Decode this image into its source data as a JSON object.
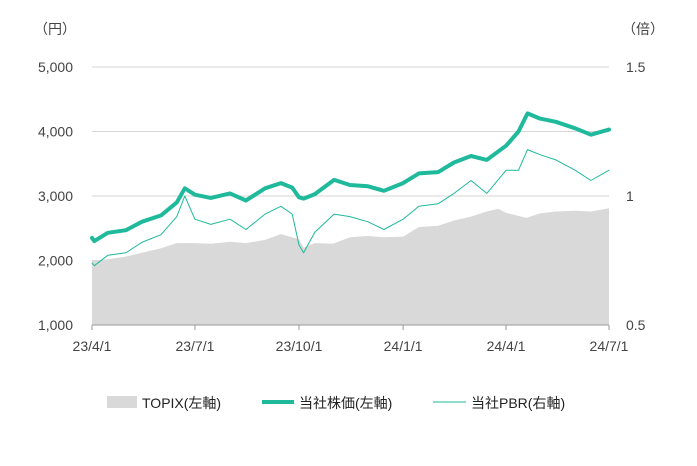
{
  "chart_data": {
    "type": "line",
    "title": "",
    "left_axis": {
      "unit_label": "（円）",
      "ylim": [
        1000,
        5000
      ],
      "ticks": [
        {
          "v": 1000,
          "label": "1,000"
        },
        {
          "v": 2000,
          "label": "2,000"
        },
        {
          "v": 3000,
          "label": "3,000"
        },
        {
          "v": 4000,
          "label": "4,000"
        },
        {
          "v": 5000,
          "label": "5,000"
        }
      ]
    },
    "right_axis": {
      "unit_label": "（倍）",
      "ylim": [
        0.5,
        1.5
      ],
      "ticks": [
        {
          "v": 0.5,
          "label": "0.5"
        },
        {
          "v": 1.0,
          "label": "1"
        },
        {
          "v": 1.5,
          "label": "1.5"
        }
      ]
    },
    "x_axis": {
      "min": "2023-04-01",
      "max": "2024-07-01",
      "ticks": [
        {
          "date": "2023-04-01",
          "label": "23/4/1"
        },
        {
          "date": "2023-07-01",
          "label": "23/7/1"
        },
        {
          "date": "2023-10-01",
          "label": "23/10/1"
        },
        {
          "date": "2024-01-01",
          "label": "24/1/1"
        },
        {
          "date": "2024-04-01",
          "label": "24/4/1"
        },
        {
          "date": "2024-07-01",
          "label": "24/7/1"
        }
      ]
    },
    "grid": "horizontal",
    "legend_position": "bottom",
    "series": [
      {
        "name": "TOPIX(左軸)",
        "kind": "area",
        "axis": "left",
        "color": "#d9d9d9",
        "points": [
          [
            "2023-04-01",
            1990
          ],
          [
            "2023-04-03",
            2000
          ],
          [
            "2023-04-15",
            2020
          ],
          [
            "2023-05-01",
            2060
          ],
          [
            "2023-05-15",
            2120
          ],
          [
            "2023-06-01",
            2190
          ],
          [
            "2023-06-15",
            2270
          ],
          [
            "2023-07-01",
            2270
          ],
          [
            "2023-07-15",
            2260
          ],
          [
            "2023-08-01",
            2290
          ],
          [
            "2023-08-15",
            2270
          ],
          [
            "2023-09-01",
            2320
          ],
          [
            "2023-09-15",
            2410
          ],
          [
            "2023-10-01",
            2330
          ],
          [
            "2023-10-05",
            2200
          ],
          [
            "2023-10-15",
            2270
          ],
          [
            "2023-10-31",
            2260
          ],
          [
            "2023-11-15",
            2360
          ],
          [
            "2023-12-01",
            2380
          ],
          [
            "2023-12-15",
            2360
          ],
          [
            "2024-01-01",
            2370
          ],
          [
            "2024-01-15",
            2520
          ],
          [
            "2024-02-01",
            2540
          ],
          [
            "2024-02-15",
            2620
          ],
          [
            "2024-03-01",
            2680
          ],
          [
            "2024-03-15",
            2760
          ],
          [
            "2024-03-25",
            2800
          ],
          [
            "2024-04-01",
            2740
          ],
          [
            "2024-04-19",
            2660
          ],
          [
            "2024-05-01",
            2730
          ],
          [
            "2024-05-15",
            2760
          ],
          [
            "2024-06-01",
            2770
          ],
          [
            "2024-06-15",
            2760
          ],
          [
            "2024-07-01",
            2810
          ]
        ]
      },
      {
        "name": "当社株価(左軸)",
        "kind": "line",
        "axis": "left",
        "color": "#1fb99b",
        "points": [
          [
            "2023-04-01",
            2350
          ],
          [
            "2023-04-03",
            2300
          ],
          [
            "2023-04-15",
            2430
          ],
          [
            "2023-05-01",
            2470
          ],
          [
            "2023-05-15",
            2600
          ],
          [
            "2023-06-01",
            2700
          ],
          [
            "2023-06-15",
            2900
          ],
          [
            "2023-06-22",
            3120
          ],
          [
            "2023-07-01",
            3020
          ],
          [
            "2023-07-15",
            2970
          ],
          [
            "2023-08-01",
            3040
          ],
          [
            "2023-08-15",
            2930
          ],
          [
            "2023-09-01",
            3120
          ],
          [
            "2023-09-15",
            3200
          ],
          [
            "2023-09-25",
            3130
          ],
          [
            "2023-10-01",
            2980
          ],
          [
            "2023-10-05",
            2960
          ],
          [
            "2023-10-15",
            3030
          ],
          [
            "2023-11-01",
            3250
          ],
          [
            "2023-11-15",
            3170
          ],
          [
            "2023-12-01",
            3150
          ],
          [
            "2023-12-15",
            3080
          ],
          [
            "2024-01-01",
            3200
          ],
          [
            "2024-01-15",
            3350
          ],
          [
            "2024-02-01",
            3370
          ],
          [
            "2024-02-15",
            3520
          ],
          [
            "2024-03-01",
            3620
          ],
          [
            "2024-03-15",
            3560
          ],
          [
            "2024-04-01",
            3780
          ],
          [
            "2024-04-12",
            4000
          ],
          [
            "2024-04-20",
            4280
          ],
          [
            "2024-05-01",
            4200
          ],
          [
            "2024-05-15",
            4150
          ],
          [
            "2024-06-01",
            4050
          ],
          [
            "2024-06-15",
            3950
          ],
          [
            "2024-07-01",
            4030
          ]
        ]
      },
      {
        "name": "当社PBR(右軸)",
        "kind": "line",
        "axis": "right",
        "color": "#1fb99b",
        "points": [
          [
            "2023-04-01",
            0.74
          ],
          [
            "2023-04-03",
            0.73
          ],
          [
            "2023-04-15",
            0.77
          ],
          [
            "2023-05-01",
            0.78
          ],
          [
            "2023-05-15",
            0.82
          ],
          [
            "2023-06-01",
            0.85
          ],
          [
            "2023-06-15",
            0.92
          ],
          [
            "2023-06-22",
            1.0
          ],
          [
            "2023-07-01",
            0.91
          ],
          [
            "2023-07-15",
            0.89
          ],
          [
            "2023-08-01",
            0.91
          ],
          [
            "2023-08-15",
            0.87
          ],
          [
            "2023-09-01",
            0.93
          ],
          [
            "2023-09-15",
            0.96
          ],
          [
            "2023-09-25",
            0.93
          ],
          [
            "2023-10-01",
            0.81
          ],
          [
            "2023-10-05",
            0.78
          ],
          [
            "2023-10-15",
            0.86
          ],
          [
            "2023-11-01",
            0.93
          ],
          [
            "2023-11-15",
            0.92
          ],
          [
            "2023-12-01",
            0.9
          ],
          [
            "2023-12-15",
            0.87
          ],
          [
            "2024-01-01",
            0.91
          ],
          [
            "2024-01-15",
            0.96
          ],
          [
            "2024-02-01",
            0.97
          ],
          [
            "2024-02-15",
            1.01
          ],
          [
            "2024-03-01",
            1.06
          ],
          [
            "2024-03-15",
            1.01
          ],
          [
            "2024-04-01",
            1.1
          ],
          [
            "2024-04-12",
            1.1
          ],
          [
            "2024-04-20",
            1.18
          ],
          [
            "2024-05-01",
            1.16
          ],
          [
            "2024-05-15",
            1.14
          ],
          [
            "2024-06-01",
            1.1
          ],
          [
            "2024-06-15",
            1.06
          ],
          [
            "2024-07-01",
            1.1
          ]
        ]
      }
    ]
  }
}
